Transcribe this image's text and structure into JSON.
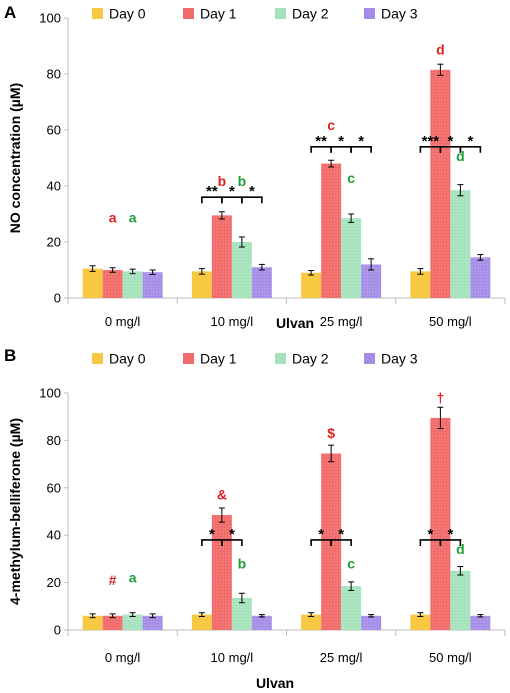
{
  "colors": {
    "day0": "#F7C943",
    "day1": "#F26B6B",
    "day2": "#A4E2BC",
    "day3": "#A58CE6",
    "red_label": "#E02020",
    "green_label": "#1E9E3A"
  },
  "chart_data": [
    {
      "panel": "A",
      "type": "bar",
      "xlabel": "Ulvan",
      "ylabel": "NO concentration (µM)",
      "ylim": [
        0,
        100
      ],
      "yticks": [
        "0",
        "20",
        "40",
        "60",
        "80",
        "100"
      ],
      "legend_position": "top",
      "categories": [
        "0 mg/l",
        "10 mg/l",
        "25 mg/l",
        "50 mg/l"
      ],
      "series": [
        {
          "name": "Day 0",
          "values": [
            10.5,
            9.5,
            9.0,
            9.5
          ],
          "errors": [
            1.0,
            1.0,
            0.8,
            1.0
          ]
        },
        {
          "name": "Day 1",
          "values": [
            10.0,
            29.5,
            48.0,
            81.5
          ],
          "errors": [
            0.8,
            1.3,
            1.2,
            2.0
          ]
        },
        {
          "name": "Day 2",
          "values": [
            9.5,
            20.0,
            28.5,
            38.5
          ],
          "errors": [
            0.8,
            1.8,
            1.5,
            2.0
          ]
        },
        {
          "name": "Day 3",
          "values": [
            9.2,
            11.0,
            12.0,
            14.5
          ],
          "errors": [
            0.8,
            1.0,
            2.0,
            1.0
          ]
        }
      ],
      "letters": [
        {
          "text": "a",
          "category": 0,
          "series": 1,
          "y": 27,
          "color": "red"
        },
        {
          "text": "a",
          "category": 0,
          "series": 2,
          "y": 27,
          "color": "green"
        },
        {
          "text": "b",
          "category": 1,
          "series": 1,
          "y": 40,
          "color": "red"
        },
        {
          "text": "b",
          "category": 1,
          "series": 2,
          "y": 40,
          "color": "green"
        },
        {
          "text": "c",
          "category": 2,
          "series": 1,
          "y": 60,
          "color": "red"
        },
        {
          "text": "c",
          "category": 2,
          "series": 2,
          "y": 41,
          "color": "green"
        },
        {
          "text": "d",
          "category": 3,
          "series": 1,
          "y": 87,
          "color": "red"
        },
        {
          "text": "d",
          "category": 3,
          "series": 2,
          "y": 49,
          "color": "green"
        }
      ],
      "brackets": [
        {
          "category": 1,
          "label": "**",
          "y": 36
        },
        {
          "category": 2,
          "label": "**",
          "y": 54
        },
        {
          "category": 3,
          "label": "***",
          "y": 54
        }
      ]
    },
    {
      "panel": "B",
      "type": "bar",
      "xlabel": "Ulvan",
      "ylabel": "4-methylum-belliferone (µM)",
      "ylim": [
        0,
        100
      ],
      "yticks": [
        "0",
        "20",
        "40",
        "60",
        "80",
        "100"
      ],
      "legend_position": "top",
      "categories": [
        "0 mg/l",
        "10 mg/l",
        "25 mg/l",
        "50 mg/l"
      ],
      "series": [
        {
          "name": "Day 0",
          "values": [
            6.0,
            6.5,
            6.5,
            6.5
          ],
          "errors": [
            0.8,
            0.8,
            0.8,
            0.8
          ]
        },
        {
          "name": "Day 1",
          "values": [
            6.0,
            48.5,
            74.5,
            89.5
          ],
          "errors": [
            0.8,
            3.0,
            3.5,
            4.5
          ]
        },
        {
          "name": "Day 2",
          "values": [
            6.5,
            13.5,
            18.5,
            25.0
          ],
          "errors": [
            0.8,
            2.0,
            1.8,
            1.8
          ]
        },
        {
          "name": "Day 3",
          "values": [
            6.0,
            6.0,
            6.0,
            6.0
          ],
          "errors": [
            0.8,
            0.5,
            0.5,
            0.5
          ]
        }
      ],
      "letters": [
        {
          "text": "#",
          "category": 0,
          "series": 1,
          "y": 19,
          "color": "red"
        },
        {
          "text": "a",
          "category": 0,
          "series": 2,
          "y": 20,
          "color": "green"
        },
        {
          "text": "&",
          "category": 1,
          "series": 1,
          "y": 55,
          "color": "red"
        },
        {
          "text": "b",
          "category": 1,
          "series": 2,
          "y": 26,
          "color": "green"
        },
        {
          "text": "$",
          "category": 2,
          "series": 1,
          "y": 81,
          "color": "red"
        },
        {
          "text": "c",
          "category": 2,
          "series": 2,
          "y": 26,
          "color": "green"
        },
        {
          "text": "†",
          "category": 3,
          "series": 1,
          "y": 96,
          "color": "red"
        },
        {
          "text": "d",
          "category": 3,
          "series": 2,
          "y": 32,
          "color": "green"
        }
      ],
      "brackets": [
        {
          "category": 1,
          "label": "*",
          "y": 38
        },
        {
          "category": 2,
          "label": "*",
          "y": 38
        },
        {
          "category": 3,
          "label": "*",
          "y": 38
        }
      ]
    }
  ]
}
